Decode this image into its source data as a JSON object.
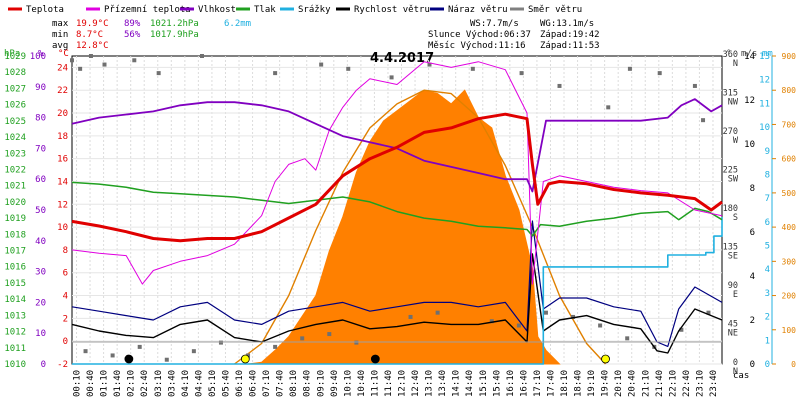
{
  "chart_data": {
    "type": "line",
    "title": "4.4.2017",
    "legend": [
      {
        "label": "Teplota",
        "color": "#e00000"
      },
      {
        "label": "Přízemní teplota",
        "color": "#e000e0"
      },
      {
        "label": "Vlhkost",
        "color": "#8000c0"
      },
      {
        "label": "Tlak",
        "color": "#20a020"
      },
      {
        "label": "Srážky",
        "color": "#20b0e0"
      },
      {
        "label": "Rychlost větru",
        "color": "#000000"
      },
      {
        "label": "Náraz větru",
        "color": "#000080"
      },
      {
        "label": "Směr větru",
        "color": "#808080"
      }
    ],
    "stats": {
      "max": {
        "label": "max",
        "temp": "19.9°C",
        "hum": "89%",
        "press": "1021.2hPa",
        "rain": "6.2mm"
      },
      "min": {
        "label": "min",
        "temp": "8.7°C",
        "hum": "56%",
        "press": "1017.9hPa"
      },
      "avg": {
        "label": "avg",
        "temp": "12.8°C"
      }
    },
    "wind_info": {
      "ws": "WS:7.7m/s",
      "wg": "WG:13.1m/s"
    },
    "sun_info": {
      "rise": "Slunce Východ:06:37",
      "set": "Západ:19:42"
    },
    "moon_info": {
      "rise": "Měsíc Východ:11:16",
      "set": "Západ:11:53"
    },
    "x_unit_label": "čas",
    "x_ticks": [
      "00:10",
      "00:40",
      "01:10",
      "01:40",
      "02:10",
      "02:40",
      "03:10",
      "03:40",
      "04:10",
      "04:40",
      "05:10",
      "05:40",
      "06:10",
      "06:40",
      "07:10",
      "07:40",
      "08:10",
      "08:40",
      "09:10",
      "09:40",
      "10:10",
      "10:40",
      "11:10",
      "11:40",
      "12:10",
      "12:40",
      "13:10",
      "13:40",
      "14:10",
      "14:40",
      "15:10",
      "15:40",
      "16:10",
      "16:40",
      "17:10",
      "17:40",
      "18:10",
      "18:40",
      "19:10",
      "19:40",
      "20:10",
      "20:40",
      "21:10",
      "21:40",
      "22:10",
      "22:40",
      "23:10",
      "23:40"
    ],
    "axes": {
      "hpa": {
        "label": "hPa",
        "color": "#20a020",
        "range": [
          1010,
          1029
        ],
        "ticks": [
          "1010",
          "1011",
          "1012",
          "1013",
          "1014",
          "1015",
          "1016",
          "1017",
          "1018",
          "1019",
          "1020",
          "1021",
          "1022",
          "1023",
          "1024",
          "1025",
          "1026",
          "1027",
          "1028",
          "1029"
        ]
      },
      "pct": {
        "label": "%",
        "color": "#8000c0",
        "range": [
          0,
          100
        ],
        "ticks": [
          "0",
          "10",
          "20",
          "30",
          "40",
          "50",
          "60",
          "70",
          "80",
          "90",
          "100"
        ]
      },
      "c": {
        "label": "°C",
        "color": "#e00000",
        "range": [
          -2,
          25
        ],
        "ticks": [
          "-2",
          "0",
          "2",
          "4",
          "6",
          "8",
          "10",
          "12",
          "14",
          "16",
          "18",
          "20",
          "22",
          "24"
        ]
      },
      "deg": {
        "label": "°",
        "range": [
          0,
          360
        ],
        "ticks": [
          "0",
          "45",
          "90",
          "135",
          "180",
          "225",
          "270",
          "315",
          "360"
        ],
        "dirs": [
          "N",
          "NE",
          "E",
          "SE",
          "S",
          "SW",
          "W",
          "NW",
          "N"
        ]
      },
      "mm": {
        "label": "mm",
        "color": "#20b0e0",
        "range": [
          0,
          13
        ],
        "ticks": [
          "0",
          "1",
          "2",
          "3",
          "4",
          "5",
          "6",
          "7",
          "8",
          "9",
          "10",
          "11",
          "12",
          "13"
        ]
      },
      "ms": {
        "label": "m/s",
        "range": [
          0,
          14
        ],
        "ticks": [
          "0",
          "2",
          "4",
          "6",
          "8",
          "10",
          "12",
          "14"
        ]
      },
      "wm2": {
        "label": "W/m²",
        "color": "#e08000",
        "range": [
          0,
          900
        ],
        "ticks": [
          "0",
          "100",
          "200",
          "300",
          "400",
          "500",
          "600",
          "700",
          "800",
          "900"
        ]
      }
    },
    "series": {
      "temperature_c": [
        [
          0,
          10.5
        ],
        [
          1,
          10.1
        ],
        [
          2,
          9.6
        ],
        [
          3,
          9.0
        ],
        [
          4,
          8.8
        ],
        [
          5,
          9.0
        ],
        [
          6,
          9.0
        ],
        [
          7,
          9.6
        ],
        [
          8,
          10.8
        ],
        [
          9,
          12.0
        ],
        [
          10,
          14.5
        ],
        [
          11,
          16.0
        ],
        [
          12,
          17.0
        ],
        [
          13,
          18.3
        ],
        [
          14,
          18.7
        ],
        [
          15,
          19.5
        ],
        [
          16,
          19.9
        ],
        [
          16.8,
          19.5
        ],
        [
          17,
          15.5
        ],
        [
          17.2,
          12.0
        ],
        [
          17.6,
          13.8
        ],
        [
          18,
          14.0
        ],
        [
          19,
          13.8
        ],
        [
          20,
          13.3
        ],
        [
          21,
          13.0
        ],
        [
          22,
          12.8
        ],
        [
          23,
          12.5
        ],
        [
          23.6,
          11.5
        ],
        [
          24,
          12.2
        ]
      ],
      "ground_temp_c": [
        [
          0,
          8.0
        ],
        [
          1,
          7.7
        ],
        [
          2,
          7.5
        ],
        [
          2.6,
          5.0
        ],
        [
          3,
          6.2
        ],
        [
          4,
          7.0
        ],
        [
          5,
          7.5
        ],
        [
          6,
          8.5
        ],
        [
          7,
          11.0
        ],
        [
          7.5,
          14.0
        ],
        [
          8,
          15.5
        ],
        [
          8.6,
          16.0
        ],
        [
          9,
          15.0
        ],
        [
          9.5,
          18.5
        ],
        [
          10,
          20.5
        ],
        [
          10.5,
          22.0
        ],
        [
          11,
          23.0
        ],
        [
          12,
          22.5
        ],
        [
          13,
          24.5
        ],
        [
          14,
          24.0
        ],
        [
          15,
          24.5
        ],
        [
          16,
          23.8
        ],
        [
          16.8,
          20.0
        ],
        [
          17,
          5.0
        ],
        [
          17.4,
          14.0
        ],
        [
          18,
          14.5
        ],
        [
          19,
          14.0
        ],
        [
          20,
          13.5
        ],
        [
          21,
          13.2
        ],
        [
          22,
          13.0
        ],
        [
          23,
          11.5
        ],
        [
          24,
          11.0
        ]
      ],
      "humidity_pct": [
        [
          0,
          78
        ],
        [
          1,
          80
        ],
        [
          2,
          81
        ],
        [
          3,
          82
        ],
        [
          4,
          84
        ],
        [
          5,
          85
        ],
        [
          6,
          85
        ],
        [
          7,
          84
        ],
        [
          8,
          82
        ],
        [
          9,
          78
        ],
        [
          10,
          74
        ],
        [
          11,
          72
        ],
        [
          12,
          70
        ],
        [
          13,
          66
        ],
        [
          14,
          64
        ],
        [
          15,
          62
        ],
        [
          16,
          60
        ],
        [
          16.8,
          60
        ],
        [
          17,
          56
        ],
        [
          17.5,
          79
        ],
        [
          18,
          79
        ],
        [
          19,
          79
        ],
        [
          20,
          79
        ],
        [
          21,
          79
        ],
        [
          22,
          80
        ],
        [
          22.5,
          84
        ],
        [
          23,
          86
        ],
        [
          23.6,
          82
        ],
        [
          24,
          84
        ]
      ],
      "pressure_hpa": [
        [
          0,
          1021.2
        ],
        [
          1,
          1021.1
        ],
        [
          2,
          1020.9
        ],
        [
          3,
          1020.6
        ],
        [
          4,
          1020.5
        ],
        [
          5,
          1020.4
        ],
        [
          6,
          1020.3
        ],
        [
          7,
          1020.1
        ],
        [
          8,
          1019.9
        ],
        [
          9,
          1020.1
        ],
        [
          10,
          1020.3
        ],
        [
          11,
          1020.0
        ],
        [
          12,
          1019.4
        ],
        [
          13,
          1019.0
        ],
        [
          14,
          1018.8
        ],
        [
          15,
          1018.5
        ],
        [
          16,
          1018.4
        ],
        [
          16.8,
          1018.3
        ],
        [
          17,
          1017.9
        ],
        [
          17.3,
          1018.6
        ],
        [
          18,
          1018.5
        ],
        [
          19,
          1018.8
        ],
        [
          20,
          1019.0
        ],
        [
          21,
          1019.3
        ],
        [
          22,
          1019.4
        ],
        [
          22.4,
          1018.9
        ],
        [
          23,
          1019.6
        ],
        [
          23.5,
          1019.4
        ],
        [
          24,
          1018.9
        ]
      ],
      "rain_mm": [
        [
          0,
          0
        ],
        [
          17.3,
          0
        ],
        [
          17.4,
          4.1
        ],
        [
          21.6,
          4.1
        ],
        [
          22,
          4.6
        ],
        [
          22.6,
          4.6
        ],
        [
          23.4,
          4.7
        ],
        [
          23.7,
          5.4
        ],
        [
          24,
          6.2
        ]
      ],
      "wind_speed_ms": [
        [
          0,
          1.8
        ],
        [
          1,
          1.5
        ],
        [
          2,
          1.3
        ],
        [
          3,
          1.2
        ],
        [
          4,
          1.8
        ],
        [
          5,
          2.0
        ],
        [
          6,
          1.2
        ],
        [
          7,
          1.0
        ],
        [
          8,
          1.5
        ],
        [
          9,
          1.8
        ],
        [
          10,
          2.0
        ],
        [
          11,
          1.6
        ],
        [
          12,
          1.7
        ],
        [
          13,
          1.9
        ],
        [
          14,
          1.8
        ],
        [
          15,
          1.8
        ],
        [
          16,
          2.0
        ],
        [
          16.8,
          1.0
        ],
        [
          17,
          5.0
        ],
        [
          17.4,
          1.5
        ],
        [
          18,
          2.0
        ],
        [
          19,
          2.2
        ],
        [
          20,
          1.8
        ],
        [
          21,
          1.6
        ],
        [
          21.6,
          0.6
        ],
        [
          22,
          0.5
        ],
        [
          22.4,
          1.5
        ],
        [
          23,
          2.5
        ],
        [
          24,
          2.0
        ]
      ],
      "wind_gust_ms": [
        [
          0,
          2.6
        ],
        [
          1,
          2.4
        ],
        [
          2,
          2.2
        ],
        [
          3,
          2.0
        ],
        [
          4,
          2.6
        ],
        [
          5,
          2.8
        ],
        [
          6,
          2.0
        ],
        [
          7,
          1.8
        ],
        [
          8,
          2.4
        ],
        [
          9,
          2.6
        ],
        [
          10,
          2.8
        ],
        [
          11,
          2.4
        ],
        [
          12,
          2.6
        ],
        [
          13,
          2.8
        ],
        [
          14,
          2.8
        ],
        [
          15,
          2.6
        ],
        [
          16,
          2.8
        ],
        [
          16.8,
          1.5
        ],
        [
          17,
          6.5
        ],
        [
          17.4,
          2.5
        ],
        [
          18,
          3.0
        ],
        [
          19,
          3.0
        ],
        [
          20,
          2.6
        ],
        [
          21,
          2.4
        ],
        [
          21.6,
          1.0
        ],
        [
          22,
          0.8
        ],
        [
          22.4,
          2.5
        ],
        [
          23,
          3.5
        ],
        [
          24,
          2.8
        ]
      ],
      "wind_dir_deg": [
        [
          0,
          355
        ],
        [
          0.3,
          345
        ],
        [
          0.7,
          360
        ],
        [
          1.2,
          350
        ],
        [
          2.3,
          355
        ],
        [
          3.2,
          340
        ],
        [
          4.8,
          360
        ],
        [
          7.5,
          340
        ],
        [
          9.2,
          350
        ],
        [
          10.2,
          345
        ],
        [
          11.8,
          335
        ],
        [
          13.2,
          350
        ],
        [
          14.8,
          345
        ],
        [
          16.6,
          340
        ],
        [
          18.0,
          325
        ],
        [
          19.8,
          300
        ],
        [
          20.6,
          345
        ],
        [
          21.7,
          340
        ],
        [
          23.0,
          325
        ],
        [
          23.3,
          285
        ],
        [
          0.5,
          15
        ],
        [
          1.5,
          10
        ],
        [
          2.5,
          20
        ],
        [
          3.5,
          5
        ],
        [
          4.5,
          15
        ],
        [
          5.5,
          25
        ],
        [
          6.5,
          10
        ],
        [
          7.5,
          20
        ],
        [
          8.5,
          30
        ],
        [
          9.5,
          35
        ],
        [
          10.5,
          25
        ],
        [
          12.5,
          55
        ],
        [
          13.5,
          60
        ],
        [
          15.5,
          50
        ],
        [
          16.5,
          45
        ],
        [
          17.5,
          60
        ],
        [
          18.5,
          55
        ],
        [
          19.5,
          45
        ],
        [
          20.5,
          30
        ],
        [
          21.5,
          20
        ],
        [
          22.5,
          40
        ],
        [
          23.5,
          60
        ]
      ],
      "solar_wm2": [
        [
          6.5,
          0
        ],
        [
          7,
          5
        ],
        [
          7.5,
          40
        ],
        [
          8,
          80
        ],
        [
          8.5,
          140
        ],
        [
          9,
          200
        ],
        [
          9.5,
          330
        ],
        [
          10,
          430
        ],
        [
          10.5,
          560
        ],
        [
          11,
          650
        ],
        [
          11.5,
          710
        ],
        [
          12,
          740
        ],
        [
          12.5,
          770
        ],
        [
          13,
          800
        ],
        [
          13.5,
          790
        ],
        [
          14,
          760
        ],
        [
          14.5,
          800
        ],
        [
          15,
          720
        ],
        [
          15.5,
          690
        ],
        [
          16,
          550
        ],
        [
          16.5,
          450
        ],
        [
          17,
          280
        ],
        [
          17.2,
          80
        ],
        [
          17.5,
          40
        ],
        [
          18,
          0
        ]
      ],
      "solar_theoretical_wm2": [
        [
          6.0,
          0
        ],
        [
          7,
          60
        ],
        [
          8,
          200
        ],
        [
          9,
          390
        ],
        [
          10,
          560
        ],
        [
          11,
          690
        ],
        [
          12,
          760
        ],
        [
          13,
          800
        ],
        [
          14,
          790
        ],
        [
          15,
          720
        ],
        [
          16,
          580
        ],
        [
          17,
          400
        ],
        [
          18,
          200
        ],
        [
          19,
          60
        ],
        [
          19.7,
          0
        ]
      ],
      "markers": [
        {
          "t": 2.1,
          "color": "#000000"
        },
        {
          "t": 6.4,
          "color": "#ffff00"
        },
        {
          "t": 11.2,
          "color": "#000000"
        },
        {
          "t": 19.7,
          "color": "#ffff00"
        }
      ]
    }
  }
}
